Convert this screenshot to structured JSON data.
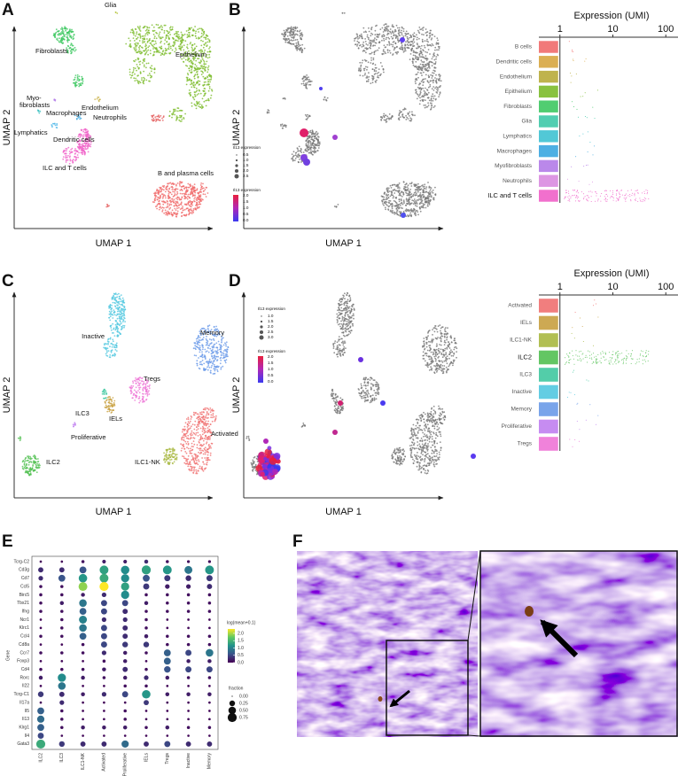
{
  "panel_a": {
    "letter": "A",
    "x_label": "UMAP 1",
    "y_label": "UMAP 2",
    "clusters": [
      {
        "label": "Glia",
        "color": "#b3c235"
      },
      {
        "label": "Fibroblasts",
        "color": "#3ec862"
      },
      {
        "label": "Epithelium",
        "color": "#7cbb2a"
      },
      {
        "label": [
          "Myo-",
          "fibroblasts"
        ],
        "color": "#b27be8"
      },
      {
        "label": "Macrophages",
        "color": "#3aa6e0"
      },
      {
        "label": "Endothelium",
        "color": "#c9b043"
      },
      {
        "label": "Neutrophils",
        "color": "#e45d5d"
      },
      {
        "label": "Lymphatics",
        "color": "#3fc2c2"
      },
      {
        "label": "Dendritic cells",
        "color": "#52b9ea"
      },
      {
        "label": "ILC and T cells",
        "color": "#f060c8"
      },
      {
        "label": "B and plasma cells",
        "color": "#f06a6a"
      }
    ]
  },
  "panel_b": {
    "letter": "B",
    "x_label": "UMAP 1",
    "y_label": "UMAP 2",
    "size_legend": {
      "title": "Il13 expression",
      "labels": [
        "0.5",
        "1.0",
        "1.5",
        "2.0",
        "2.5"
      ]
    },
    "color_legend": {
      "title": "Il13 expression",
      "labels": [
        "2.0",
        "1.5",
        "1.0",
        "0.5",
        "0.0"
      ]
    },
    "strip": {
      "title": "Expression (UMI)",
      "xscale": "log",
      "xlim": [
        0.4,
        170
      ],
      "xticks": [
        1,
        10,
        100
      ],
      "categories": [
        "B cells",
        "Dendritic cells",
        "Endothelium",
        "Epithelium",
        "Fibroblasts",
        "Glia",
        "Lymphatics",
        "Macrophages",
        "Myofibroblasts",
        "Neutrophils",
        "ILC and T cells"
      ],
      "colors": [
        "#f06a6a",
        "#d7a640",
        "#b8ab3a",
        "#7cbb2a",
        "#3ec862",
        "#3fc9a8",
        "#3fc2d2",
        "#3aa6e0",
        "#b27be8",
        "#d98be0",
        "#f060c8"
      ]
    }
  },
  "panel_c": {
    "letter": "C",
    "x_label": "UMAP 1",
    "y_label": "UMAP 2",
    "clusters": [
      {
        "label": "Inactive",
        "color": "#52c8e0"
      },
      {
        "label": "Memory",
        "color": "#6a9ae8"
      },
      {
        "label": "Tregs",
        "color": "#ee74d6"
      },
      {
        "label": "ILC3",
        "color": "#40c8a0"
      },
      {
        "label": "IELs",
        "color": "#c8a040"
      },
      {
        "label": "Activated",
        "color": "#f07070"
      },
      {
        "label": "Proliferative",
        "color": "#c080f0"
      },
      {
        "label": "ILC2",
        "color": "#52c052"
      },
      {
        "label": "ILC1-NK",
        "color": "#a8b840"
      }
    ]
  },
  "panel_d": {
    "letter": "D",
    "x_label": "UMAP 1",
    "y_label": "UMAP 2",
    "size_legend": {
      "title": "Il13 expression",
      "labels": [
        "1.0",
        "1.5",
        "2.0",
        "2.5",
        "3.0"
      ]
    },
    "color_legend": {
      "title": "Il13 expression",
      "labels": [
        "2.0",
        "1.5",
        "1.0",
        "0.5",
        "0.0"
      ]
    },
    "strip": {
      "title": "Expression (UMI)",
      "xscale": "log",
      "xlim": [
        0.4,
        170
      ],
      "xticks": [
        1,
        10,
        100
      ],
      "categories": [
        "Activated",
        "IELs",
        "ILC1-NK",
        "ILC2",
        "ILC3",
        "Inactive",
        "Memory",
        "Proliferative",
        "Tregs"
      ],
      "colors": [
        "#f07070",
        "#c8a040",
        "#a8b840",
        "#52c052",
        "#40c8a0",
        "#52c8e0",
        "#6a9ae8",
        "#c080f0",
        "#ee74d6"
      ]
    }
  },
  "panel_e": {
    "letter": "E",
    "y_label": "Gene",
    "genes": [
      "Tcrg-C2",
      "Cd3g",
      "Cd7",
      "Ccl5",
      "Birc5",
      "Tbx21",
      "Ifng",
      "Ncr1",
      "Klrc1",
      "Ccl4",
      "Cd8a",
      "Ccr7",
      "Foxp3",
      "Cd4",
      "Rorc",
      "Il22",
      "Tcrg-C1",
      "Il17a",
      "Il5",
      "Il13",
      "Klrg1",
      "Il4",
      "Gata3"
    ],
    "groups": [
      "ILC2",
      "ILC3",
      "ILC1-NK",
      "Activated",
      "Proliferative",
      "IELs",
      "Tregs",
      "Inactive",
      "Memory"
    ],
    "mean": [
      [
        0.05,
        0.05,
        0.1,
        0.2,
        0.2,
        0.3,
        0.1,
        0.1,
        0.1
      ],
      [
        0.3,
        0.3,
        0.6,
        1.3,
        1.1,
        1.3,
        1.2,
        0.9,
        1.2
      ],
      [
        0.3,
        0.6,
        1.2,
        1.4,
        1.1,
        0.6,
        0.4,
        0.3,
        0.4
      ],
      [
        0.1,
        0.1,
        1.9,
        2.3,
        1.3,
        0.4,
        0.2,
        0.2,
        0.3
      ],
      [
        0.1,
        0.1,
        0.2,
        0.3,
        1.1,
        0.1,
        0.1,
        0.1,
        0.1
      ],
      [
        0.1,
        0.2,
        0.9,
        0.5,
        0.5,
        0.2,
        0.1,
        0.1,
        0.1
      ],
      [
        0.1,
        0.1,
        0.7,
        0.5,
        0.3,
        0.1,
        0.1,
        0.1,
        0.1
      ],
      [
        0.05,
        0.1,
        1.0,
        0.3,
        0.3,
        0.1,
        0.05,
        0.05,
        0.05
      ],
      [
        0.05,
        0.1,
        0.9,
        0.5,
        0.3,
        0.1,
        0.05,
        0.05,
        0.05
      ],
      [
        0.1,
        0.1,
        0.7,
        0.5,
        0.3,
        0.2,
        0.1,
        0.1,
        0.1
      ],
      [
        0.05,
        0.05,
        0.1,
        0.5,
        0.4,
        0.4,
        0.1,
        0.1,
        0.1
      ],
      [
        0.1,
        0.1,
        0.1,
        0.3,
        0.2,
        0.1,
        0.7,
        0.5,
        0.9
      ],
      [
        0.05,
        0.05,
        0.05,
        0.1,
        0.2,
        0.05,
        0.7,
        0.2,
        0.2
      ],
      [
        0.1,
        0.1,
        0.1,
        0.2,
        0.3,
        0.1,
        0.6,
        0.5,
        0.5
      ],
      [
        0.2,
        1.1,
        0.2,
        0.1,
        0.2,
        0.3,
        0.2,
        0.1,
        0.1
      ],
      [
        0.05,
        0.9,
        0.05,
        0.05,
        0.1,
        0.1,
        0.05,
        0.05,
        0.05
      ],
      [
        0.4,
        0.3,
        0.2,
        0.3,
        0.5,
        1.2,
        0.2,
        0.2,
        0.2
      ],
      [
        0.05,
        0.3,
        0.05,
        0.05,
        0.05,
        0.4,
        0.05,
        0.05,
        0.05
      ],
      [
        0.7,
        0.1,
        0.05,
        0.05,
        0.1,
        0.05,
        0.05,
        0.05,
        0.05
      ],
      [
        0.8,
        0.1,
        0.05,
        0.05,
        0.1,
        0.05,
        0.05,
        0.05,
        0.05
      ],
      [
        0.7,
        0.1,
        0.2,
        0.2,
        0.2,
        0.1,
        0.2,
        0.1,
        0.1
      ],
      [
        0.5,
        0.05,
        0.05,
        0.05,
        0.05,
        0.05,
        0.05,
        0.05,
        0.05
      ],
      [
        1.4,
        0.4,
        0.3,
        0.3,
        0.8,
        0.3,
        0.5,
        0.3,
        0.3
      ]
    ],
    "fraction": [
      [
        0.02,
        0.02,
        0.05,
        0.08,
        0.08,
        0.1,
        0.05,
        0.04,
        0.04
      ],
      [
        0.2,
        0.2,
        0.4,
        0.7,
        0.65,
        0.75,
        0.7,
        0.55,
        0.7
      ],
      [
        0.15,
        0.4,
        0.65,
        0.7,
        0.6,
        0.4,
        0.3,
        0.25,
        0.3
      ],
      [
        0.05,
        0.05,
        0.7,
        0.75,
        0.6,
        0.3,
        0.15,
        0.15,
        0.2
      ],
      [
        0.05,
        0.05,
        0.1,
        0.15,
        0.6,
        0.05,
        0.05,
        0.05,
        0.05
      ],
      [
        0.05,
        0.1,
        0.5,
        0.3,
        0.3,
        0.1,
        0.05,
        0.05,
        0.05
      ],
      [
        0.05,
        0.05,
        0.4,
        0.3,
        0.2,
        0.05,
        0.05,
        0.05,
        0.05
      ],
      [
        0.02,
        0.05,
        0.55,
        0.15,
        0.15,
        0.05,
        0.02,
        0.02,
        0.02
      ],
      [
        0.02,
        0.05,
        0.5,
        0.3,
        0.2,
        0.05,
        0.02,
        0.02,
        0.02
      ],
      [
        0.05,
        0.05,
        0.4,
        0.3,
        0.2,
        0.1,
        0.05,
        0.05,
        0.05
      ],
      [
        0.02,
        0.02,
        0.05,
        0.3,
        0.25,
        0.25,
        0.05,
        0.05,
        0.05
      ],
      [
        0.05,
        0.05,
        0.05,
        0.15,
        0.1,
        0.05,
        0.4,
        0.3,
        0.5
      ],
      [
        0.02,
        0.02,
        0.02,
        0.05,
        0.1,
        0.02,
        0.4,
        0.1,
        0.1
      ],
      [
        0.05,
        0.05,
        0.05,
        0.1,
        0.2,
        0.05,
        0.35,
        0.3,
        0.3
      ],
      [
        0.1,
        0.6,
        0.1,
        0.05,
        0.1,
        0.15,
        0.1,
        0.05,
        0.05
      ],
      [
        0.02,
        0.5,
        0.02,
        0.02,
        0.05,
        0.05,
        0.02,
        0.02,
        0.02
      ],
      [
        0.25,
        0.2,
        0.1,
        0.15,
        0.3,
        0.65,
        0.1,
        0.1,
        0.1
      ],
      [
        0.02,
        0.15,
        0.02,
        0.02,
        0.02,
        0.2,
        0.02,
        0.02,
        0.02
      ],
      [
        0.4,
        0.05,
        0.02,
        0.02,
        0.05,
        0.02,
        0.02,
        0.02,
        0.02
      ],
      [
        0.45,
        0.05,
        0.02,
        0.02,
        0.05,
        0.02,
        0.02,
        0.02,
        0.02
      ],
      [
        0.4,
        0.05,
        0.1,
        0.1,
        0.1,
        0.05,
        0.1,
        0.05,
        0.05
      ],
      [
        0.3,
        0.02,
        0.02,
        0.02,
        0.02,
        0.02,
        0.02,
        0.02,
        0.02
      ],
      [
        0.75,
        0.25,
        0.2,
        0.2,
        0.45,
        0.2,
        0.3,
        0.2,
        0.2
      ]
    ],
    "clim": [
      0,
      2.3
    ],
    "color_legend": {
      "title": "log(mean+0.1)",
      "ticks": [
        {
          "value": 2,
          "label": "2.0"
        },
        {
          "value": 1.5,
          "label": "1.5"
        },
        {
          "value": 1,
          "label": "1.0"
        },
        {
          "value": 0.5,
          "label": "0.5"
        },
        {
          "value": 0,
          "label": "0.0"
        }
      ]
    },
    "size_legend": {
      "title": "fraction",
      "ticks": [
        {
          "value": 0,
          "label": "0.00"
        },
        {
          "value": 0.25,
          "label": "0.25"
        },
        {
          "value": 0.5,
          "label": "0.50"
        },
        {
          "value": 0.75,
          "label": "0.75"
        }
      ]
    }
  },
  "panel_f": {
    "letter": "F"
  }
}
